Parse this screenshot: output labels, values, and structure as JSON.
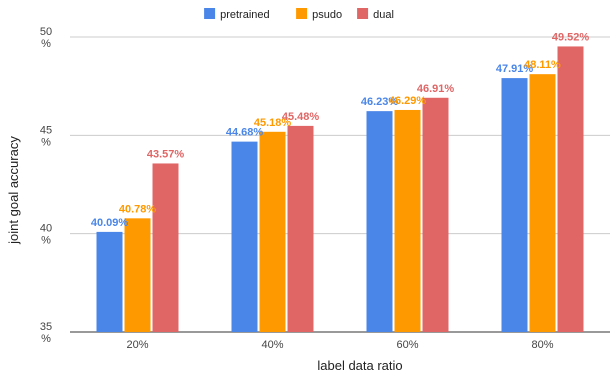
{
  "chart_data": {
    "type": "bar",
    "categories": [
      "20%",
      "40%",
      "60%",
      "80%"
    ],
    "series": [
      {
        "name": "pretrained",
        "color": "#4a86e8",
        "values": [
          40.09,
          44.68,
          46.23,
          47.91
        ],
        "labels": [
          "40.09%",
          "44.68%",
          "46.23%",
          "47.91%"
        ]
      },
      {
        "name": "psudo",
        "color": "#ff9900",
        "values": [
          40.78,
          45.18,
          46.29,
          48.11
        ],
        "labels": [
          "40.78%",
          "45.18%",
          "46.29%",
          "48.11%"
        ]
      },
      {
        "name": "dual",
        "color": "#e06666",
        "values": [
          43.57,
          45.48,
          46.91,
          49.52
        ],
        "labels": [
          "43.57%",
          "45.48%",
          "46.91%",
          "49.52%"
        ]
      }
    ],
    "xlabel": "label data ratio",
    "ylabel": "joint goal accuracy",
    "ylim": [
      35,
      50
    ],
    "yticks": [
      {
        "value": 35,
        "line1": "35",
        "line2": "%"
      },
      {
        "value": 40,
        "line1": "40",
        "line2": "%"
      },
      {
        "value": 45,
        "line1": "45",
        "line2": "%"
      },
      {
        "value": 50,
        "line1": "50",
        "line2": "%"
      }
    ],
    "grid": true,
    "legend_position": "top"
  }
}
